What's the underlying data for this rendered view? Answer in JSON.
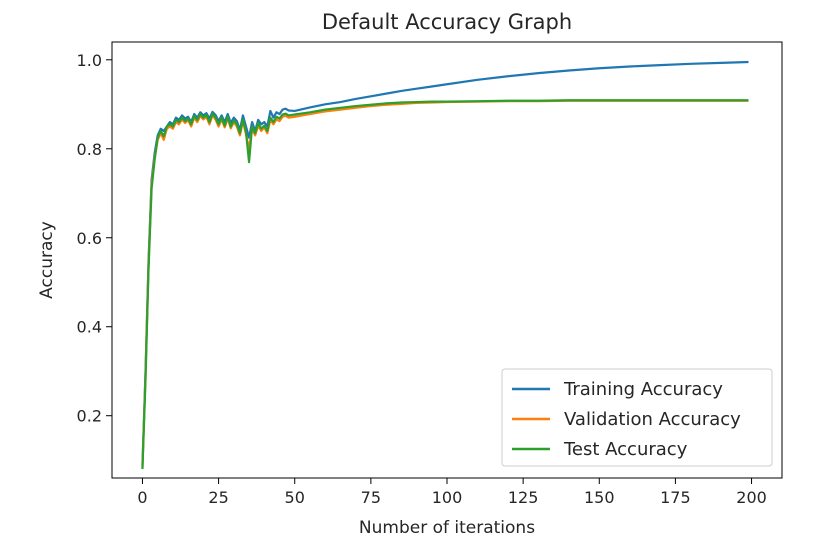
{
  "chart_data": {
    "type": "line",
    "title": "Default Accuracy Graph",
    "xlabel": "Number of iterations",
    "ylabel": "Accuracy",
    "xlim": [
      -10,
      210
    ],
    "ylim": [
      0.06,
      1.04
    ],
    "xticks": [
      0,
      25,
      50,
      75,
      100,
      125,
      150,
      175,
      200
    ],
    "xtick_labels": [
      "0",
      "25",
      "50",
      "75",
      "100",
      "125",
      "150",
      "175",
      "200"
    ],
    "yticks": [
      0.2,
      0.4,
      0.6,
      0.8,
      1.0
    ],
    "ytick_labels": [
      "0.2",
      "0.4",
      "0.6",
      "0.8",
      "1.0"
    ],
    "grid": false,
    "legend_position": "lower-right",
    "series": [
      {
        "name": "Training Accuracy",
        "color": "#1f77b4",
        "points": [
          [
            0,
            0.09
          ],
          [
            1,
            0.3
          ],
          [
            2,
            0.55
          ],
          [
            3,
            0.73
          ],
          [
            4,
            0.79
          ],
          [
            5,
            0.83
          ],
          [
            6,
            0.845
          ],
          [
            7,
            0.84
          ],
          [
            8,
            0.85
          ],
          [
            9,
            0.86
          ],
          [
            10,
            0.855
          ],
          [
            11,
            0.87
          ],
          [
            12,
            0.865
          ],
          [
            13,
            0.875
          ],
          [
            14,
            0.868
          ],
          [
            15,
            0.872
          ],
          [
            16,
            0.86
          ],
          [
            17,
            0.878
          ],
          [
            18,
            0.87
          ],
          [
            19,
            0.882
          ],
          [
            20,
            0.875
          ],
          [
            21,
            0.88
          ],
          [
            22,
            0.868
          ],
          [
            23,
            0.883
          ],
          [
            24,
            0.876
          ],
          [
            25,
            0.862
          ],
          [
            26,
            0.875
          ],
          [
            27,
            0.86
          ],
          [
            28,
            0.878
          ],
          [
            29,
            0.858
          ],
          [
            30,
            0.87
          ],
          [
            31,
            0.862
          ],
          [
            32,
            0.842
          ],
          [
            33,
            0.875
          ],
          [
            34,
            0.85
          ],
          [
            35,
            0.825
          ],
          [
            36,
            0.86
          ],
          [
            37,
            0.84
          ],
          [
            38,
            0.865
          ],
          [
            39,
            0.855
          ],
          [
            40,
            0.86
          ],
          [
            41,
            0.85
          ],
          [
            42,
            0.885
          ],
          [
            43,
            0.87
          ],
          [
            44,
            0.882
          ],
          [
            45,
            0.878
          ],
          [
            46,
            0.888
          ],
          [
            47,
            0.89
          ],
          [
            48,
            0.886
          ],
          [
            50,
            0.885
          ],
          [
            55,
            0.893
          ],
          [
            60,
            0.9
          ],
          [
            65,
            0.905
          ],
          [
            70,
            0.912
          ],
          [
            75,
            0.918
          ],
          [
            80,
            0.924
          ],
          [
            85,
            0.93
          ],
          [
            90,
            0.935
          ],
          [
            95,
            0.94
          ],
          [
            100,
            0.945
          ],
          [
            110,
            0.955
          ],
          [
            120,
            0.963
          ],
          [
            130,
            0.97
          ],
          [
            140,
            0.976
          ],
          [
            150,
            0.981
          ],
          [
            160,
            0.985
          ],
          [
            170,
            0.988
          ],
          [
            180,
            0.991
          ],
          [
            190,
            0.993
          ],
          [
            199,
            0.995
          ]
        ]
      },
      {
        "name": "Validation Accuracy",
        "color": "#ff7f0e",
        "points": [
          [
            0,
            0.085
          ],
          [
            1,
            0.29
          ],
          [
            2,
            0.54
          ],
          [
            3,
            0.72
          ],
          [
            4,
            0.78
          ],
          [
            5,
            0.82
          ],
          [
            6,
            0.835
          ],
          [
            7,
            0.82
          ],
          [
            8,
            0.845
          ],
          [
            9,
            0.85
          ],
          [
            10,
            0.845
          ],
          [
            11,
            0.86
          ],
          [
            12,
            0.855
          ],
          [
            13,
            0.866
          ],
          [
            14,
            0.858
          ],
          [
            15,
            0.864
          ],
          [
            16,
            0.85
          ],
          [
            17,
            0.87
          ],
          [
            18,
            0.86
          ],
          [
            19,
            0.874
          ],
          [
            20,
            0.866
          ],
          [
            21,
            0.872
          ],
          [
            22,
            0.855
          ],
          [
            23,
            0.875
          ],
          [
            24,
            0.866
          ],
          [
            25,
            0.85
          ],
          [
            26,
            0.866
          ],
          [
            27,
            0.848
          ],
          [
            28,
            0.868
          ],
          [
            29,
            0.846
          ],
          [
            30,
            0.86
          ],
          [
            31,
            0.85
          ],
          [
            32,
            0.83
          ],
          [
            33,
            0.862
          ],
          [
            34,
            0.832
          ],
          [
            35,
            0.8
          ],
          [
            36,
            0.845
          ],
          [
            37,
            0.83
          ],
          [
            38,
            0.852
          ],
          [
            39,
            0.84
          ],
          [
            40,
            0.848
          ],
          [
            41,
            0.835
          ],
          [
            42,
            0.865
          ],
          [
            43,
            0.855
          ],
          [
            44,
            0.866
          ],
          [
            45,
            0.862
          ],
          [
            46,
            0.872
          ],
          [
            47,
            0.874
          ],
          [
            48,
            0.87
          ],
          [
            50,
            0.872
          ],
          [
            55,
            0.878
          ],
          [
            60,
            0.884
          ],
          [
            65,
            0.888
          ],
          [
            70,
            0.892
          ],
          [
            75,
            0.896
          ],
          [
            80,
            0.899
          ],
          [
            85,
            0.901
          ],
          [
            90,
            0.903
          ],
          [
            95,
            0.904
          ],
          [
            100,
            0.905
          ],
          [
            110,
            0.906
          ],
          [
            120,
            0.907
          ],
          [
            130,
            0.907
          ],
          [
            140,
            0.908
          ],
          [
            150,
            0.908
          ],
          [
            160,
            0.908
          ],
          [
            170,
            0.908
          ],
          [
            180,
            0.908
          ],
          [
            190,
            0.908
          ],
          [
            199,
            0.908
          ]
        ]
      },
      {
        "name": "Test Accuracy",
        "color": "#2ca02c",
        "points": [
          [
            0,
            0.08
          ],
          [
            1,
            0.28
          ],
          [
            2,
            0.53
          ],
          [
            3,
            0.71
          ],
          [
            4,
            0.775
          ],
          [
            5,
            0.825
          ],
          [
            6,
            0.84
          ],
          [
            7,
            0.828
          ],
          [
            8,
            0.85
          ],
          [
            9,
            0.855
          ],
          [
            10,
            0.85
          ],
          [
            11,
            0.865
          ],
          [
            12,
            0.86
          ],
          [
            13,
            0.87
          ],
          [
            14,
            0.862
          ],
          [
            15,
            0.868
          ],
          [
            16,
            0.855
          ],
          [
            17,
            0.874
          ],
          [
            18,
            0.865
          ],
          [
            19,
            0.878
          ],
          [
            20,
            0.87
          ],
          [
            21,
            0.876
          ],
          [
            22,
            0.86
          ],
          [
            23,
            0.879
          ],
          [
            24,
            0.87
          ],
          [
            25,
            0.855
          ],
          [
            26,
            0.87
          ],
          [
            27,
            0.852
          ],
          [
            28,
            0.872
          ],
          [
            29,
            0.85
          ],
          [
            30,
            0.864
          ],
          [
            31,
            0.855
          ],
          [
            32,
            0.835
          ],
          [
            33,
            0.866
          ],
          [
            34,
            0.838
          ],
          [
            35,
            0.77
          ],
          [
            36,
            0.85
          ],
          [
            37,
            0.835
          ],
          [
            38,
            0.858
          ],
          [
            39,
            0.845
          ],
          [
            40,
            0.852
          ],
          [
            41,
            0.84
          ],
          [
            42,
            0.87
          ],
          [
            43,
            0.86
          ],
          [
            44,
            0.872
          ],
          [
            45,
            0.868
          ],
          [
            46,
            0.877
          ],
          [
            47,
            0.879
          ],
          [
            48,
            0.875
          ],
          [
            50,
            0.877
          ],
          [
            55,
            0.882
          ],
          [
            60,
            0.888
          ],
          [
            65,
            0.892
          ],
          [
            70,
            0.896
          ],
          [
            75,
            0.899
          ],
          [
            80,
            0.902
          ],
          [
            85,
            0.904
          ],
          [
            90,
            0.905
          ],
          [
            95,
            0.906
          ],
          [
            100,
            0.906
          ],
          [
            110,
            0.907
          ],
          [
            120,
            0.908
          ],
          [
            130,
            0.908
          ],
          [
            140,
            0.909
          ],
          [
            150,
            0.909
          ],
          [
            160,
            0.909
          ],
          [
            170,
            0.909
          ],
          [
            180,
            0.909
          ],
          [
            190,
            0.909
          ],
          [
            199,
            0.909
          ]
        ]
      }
    ]
  }
}
